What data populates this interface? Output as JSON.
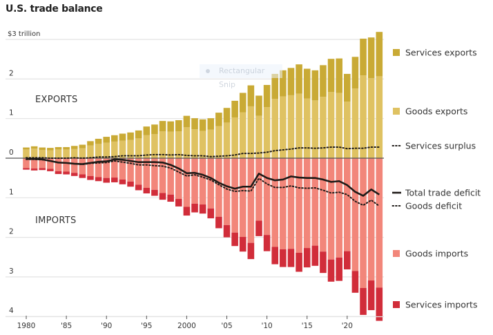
{
  "chart_data": {
    "type": "bar",
    "stacked": true,
    "diverging": true,
    "title": "U.S. trade balance",
    "unit_label": "$3 trillion",
    "xlabel": "",
    "ylabel": "",
    "ylim": [
      -4.1,
      3.2
    ],
    "grid": true,
    "y_ticks": [
      {
        "value": 3,
        "label": "$3 trillion"
      },
      {
        "value": 2,
        "label": "2"
      },
      {
        "value": 1,
        "label": "1"
      },
      {
        "value": 0,
        "label": "0"
      },
      {
        "value": -1,
        "label": "1"
      },
      {
        "value": -2,
        "label": "2"
      },
      {
        "value": -3,
        "label": "3"
      },
      {
        "value": -4,
        "label": "4"
      }
    ],
    "x_ticks": [
      {
        "year": 1980,
        "label": "1980"
      },
      {
        "year": 1985,
        "label": "'85"
      },
      {
        "year": 1990,
        "label": "'90"
      },
      {
        "year": 1995,
        "label": "'95"
      },
      {
        "year": 2000,
        "label": "2000"
      },
      {
        "year": 2005,
        "label": "'05"
      },
      {
        "year": 2010,
        "label": "'10"
      },
      {
        "year": 2015,
        "label": "'15"
      },
      {
        "year": 2020,
        "label": "'20"
      }
    ],
    "section_labels": {
      "exports": "EXPORTS",
      "imports": "IMPORTS"
    },
    "years": [
      1980,
      1981,
      1982,
      1983,
      1984,
      1985,
      1986,
      1987,
      1988,
      1989,
      1990,
      1991,
      1992,
      1993,
      1994,
      1995,
      1996,
      1997,
      1998,
      1999,
      2000,
      2001,
      2002,
      2003,
      2004,
      2005,
      2006,
      2007,
      2008,
      2009,
      2010,
      2011,
      2012,
      2013,
      2014,
      2015,
      2016,
      2017,
      2018,
      2019,
      2020,
      2021,
      2022,
      2023,
      2024
    ],
    "series": [
      {
        "name": "Goods exports",
        "key": "goods_exports",
        "color": "#dfc262",
        "values": [
          0.22,
          0.24,
          0.21,
          0.2,
          0.22,
          0.22,
          0.23,
          0.25,
          0.32,
          0.36,
          0.39,
          0.42,
          0.44,
          0.46,
          0.5,
          0.58,
          0.61,
          0.68,
          0.67,
          0.68,
          0.78,
          0.73,
          0.69,
          0.72,
          0.81,
          0.9,
          1.03,
          1.16,
          1.31,
          1.07,
          1.29,
          1.5,
          1.56,
          1.59,
          1.63,
          1.51,
          1.46,
          1.55,
          1.67,
          1.65,
          1.43,
          1.76,
          2.09,
          2.02,
          2.07
        ]
      },
      {
        "name": "Services exports",
        "key": "services_exports",
        "color": "#c9aa35",
        "values": [
          0.05,
          0.06,
          0.06,
          0.06,
          0.06,
          0.06,
          0.08,
          0.09,
          0.11,
          0.13,
          0.15,
          0.16,
          0.18,
          0.19,
          0.2,
          0.22,
          0.24,
          0.26,
          0.26,
          0.28,
          0.29,
          0.28,
          0.29,
          0.29,
          0.34,
          0.37,
          0.42,
          0.49,
          0.53,
          0.51,
          0.56,
          0.63,
          0.66,
          0.69,
          0.74,
          0.75,
          0.76,
          0.8,
          0.84,
          0.87,
          0.7,
          0.8,
          0.93,
          1.03,
          1.12
        ]
      },
      {
        "name": "Goods imports",
        "key": "goods_imports",
        "color": "#f2867a",
        "values": [
          0.25,
          0.26,
          0.25,
          0.27,
          0.33,
          0.34,
          0.37,
          0.41,
          0.45,
          0.48,
          0.5,
          0.49,
          0.54,
          0.59,
          0.67,
          0.75,
          0.8,
          0.88,
          0.92,
          1.03,
          1.23,
          1.15,
          1.17,
          1.27,
          1.48,
          1.69,
          1.88,
          1.99,
          2.14,
          1.58,
          1.94,
          2.24,
          2.3,
          2.29,
          2.39,
          2.27,
          2.21,
          2.36,
          2.56,
          2.51,
          2.35,
          2.85,
          3.28,
          3.09,
          3.27
        ]
      },
      {
        "name": "Services imports",
        "key": "services_imports",
        "color": "#d12d3a",
        "values": [
          0.04,
          0.05,
          0.05,
          0.06,
          0.07,
          0.07,
          0.08,
          0.09,
          0.1,
          0.1,
          0.12,
          0.12,
          0.12,
          0.13,
          0.14,
          0.14,
          0.15,
          0.17,
          0.18,
          0.19,
          0.22,
          0.22,
          0.23,
          0.25,
          0.29,
          0.31,
          0.34,
          0.37,
          0.41,
          0.39,
          0.41,
          0.44,
          0.45,
          0.46,
          0.48,
          0.49,
          0.51,
          0.54,
          0.56,
          0.59,
          0.46,
          0.55,
          0.68,
          0.75,
          0.84
        ]
      }
    ],
    "lines": [
      {
        "name": "Total trade deficit",
        "key": "total_deficit",
        "style": "solid",
        "color": "#1e1a17",
        "values": [
          -0.02,
          -0.02,
          -0.03,
          -0.07,
          -0.11,
          -0.12,
          -0.14,
          -0.15,
          -0.12,
          -0.09,
          -0.08,
          -0.03,
          -0.04,
          -0.07,
          -0.1,
          -0.1,
          -0.1,
          -0.11,
          -0.17,
          -0.26,
          -0.38,
          -0.37,
          -0.42,
          -0.5,
          -0.62,
          -0.71,
          -0.77,
          -0.72,
          -0.72,
          -0.39,
          -0.5,
          -0.56,
          -0.54,
          -0.46,
          -0.49,
          -0.5,
          -0.5,
          -0.54,
          -0.6,
          -0.58,
          -0.68,
          -0.85,
          -0.95,
          -0.79,
          -0.92
        ]
      },
      {
        "name": "Services surplus",
        "key": "services_surplus",
        "style": "dotted",
        "color": "#1e1a17",
        "values": [
          0.01,
          0.01,
          0.01,
          0.0,
          0.0,
          0.0,
          0.01,
          0.0,
          0.01,
          0.03,
          0.03,
          0.04,
          0.06,
          0.06,
          0.06,
          0.08,
          0.09,
          0.09,
          0.08,
          0.09,
          0.07,
          0.06,
          0.06,
          0.04,
          0.05,
          0.06,
          0.08,
          0.12,
          0.12,
          0.13,
          0.15,
          0.19,
          0.21,
          0.23,
          0.26,
          0.26,
          0.25,
          0.26,
          0.28,
          0.28,
          0.24,
          0.25,
          0.25,
          0.28,
          0.28
        ]
      },
      {
        "name": "Goods deficit",
        "key": "goods_deficit",
        "style": "dotted",
        "color": "#1e1a17",
        "values": [
          -0.03,
          -0.03,
          -0.04,
          -0.07,
          -0.11,
          -0.12,
          -0.14,
          -0.16,
          -0.13,
          -0.12,
          -0.11,
          -0.07,
          -0.1,
          -0.13,
          -0.17,
          -0.17,
          -0.19,
          -0.2,
          -0.25,
          -0.35,
          -0.45,
          -0.42,
          -0.48,
          -0.55,
          -0.67,
          -0.78,
          -0.84,
          -0.82,
          -0.83,
          -0.51,
          -0.65,
          -0.74,
          -0.74,
          -0.7,
          -0.75,
          -0.76,
          -0.75,
          -0.81,
          -0.88,
          -0.86,
          -0.92,
          -1.09,
          -1.19,
          -1.06,
          -1.21
        ]
      }
    ],
    "legend": [
      {
        "label": "Services exports",
        "kind": "square",
        "color": "#c9aa35"
      },
      {
        "label": "Goods exports",
        "kind": "square",
        "color": "#dfc262"
      },
      {
        "label": "Services surplus",
        "kind": "dotted"
      },
      {
        "label": "Total trade deficit",
        "kind": "solid"
      },
      {
        "label": "Goods deficit",
        "kind": "dotted"
      },
      {
        "label": "Goods imports",
        "kind": "square",
        "color": "#f2867a"
      },
      {
        "label": "Services imports",
        "kind": "square",
        "color": "#d12d3a"
      }
    ],
    "legend_placement": "right"
  },
  "overlay": {
    "snip_tooltip": "Rectangular Snip"
  }
}
